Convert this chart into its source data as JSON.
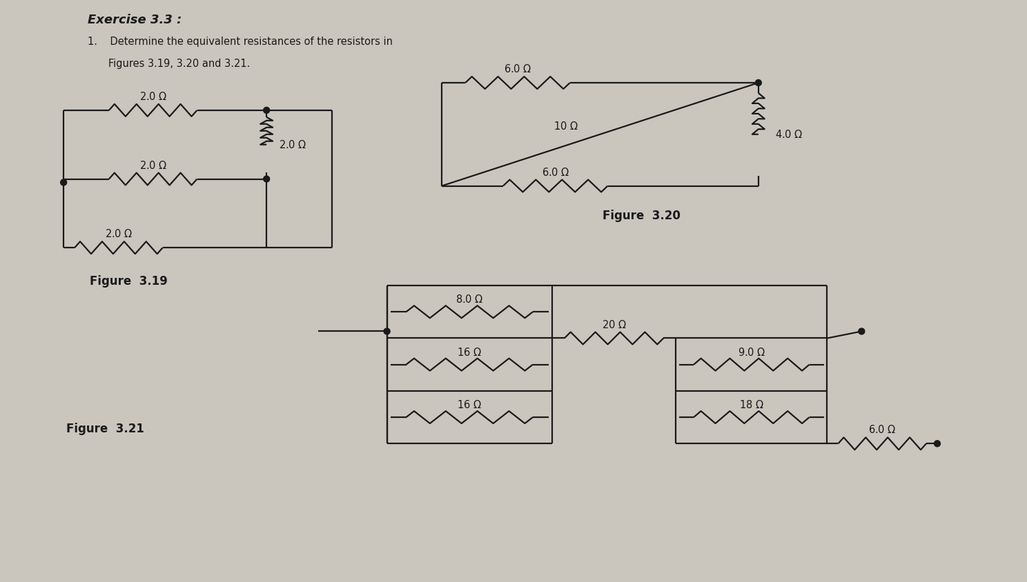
{
  "bg_color": "#cac6be",
  "lc": "#1a1a1a",
  "title": "Exercise 3.3 :",
  "sub1": "1.    Determine the equivalent resistances of the resistors in",
  "sub2": "        Figures 3.19, 3.20 and 3.21.",
  "fig319": "Figure  3.19",
  "fig320": "Figure  3.20",
  "fig321": "Figure  3.21",
  "r319": [
    "2.0Ω",
    "2.0Ω",
    "2.0Ω",
    "2.0Ω"
  ],
  "r320": [
    "6.0Ω",
    "10Ω",
    "6.0Ω",
    "4.0Ω"
  ],
  "r321": [
    "8.0Ω",
    "16Ω",
    "16Ω",
    "20Ω",
    "9.0Ω",
    "18Ω",
    "6.0Ω"
  ]
}
